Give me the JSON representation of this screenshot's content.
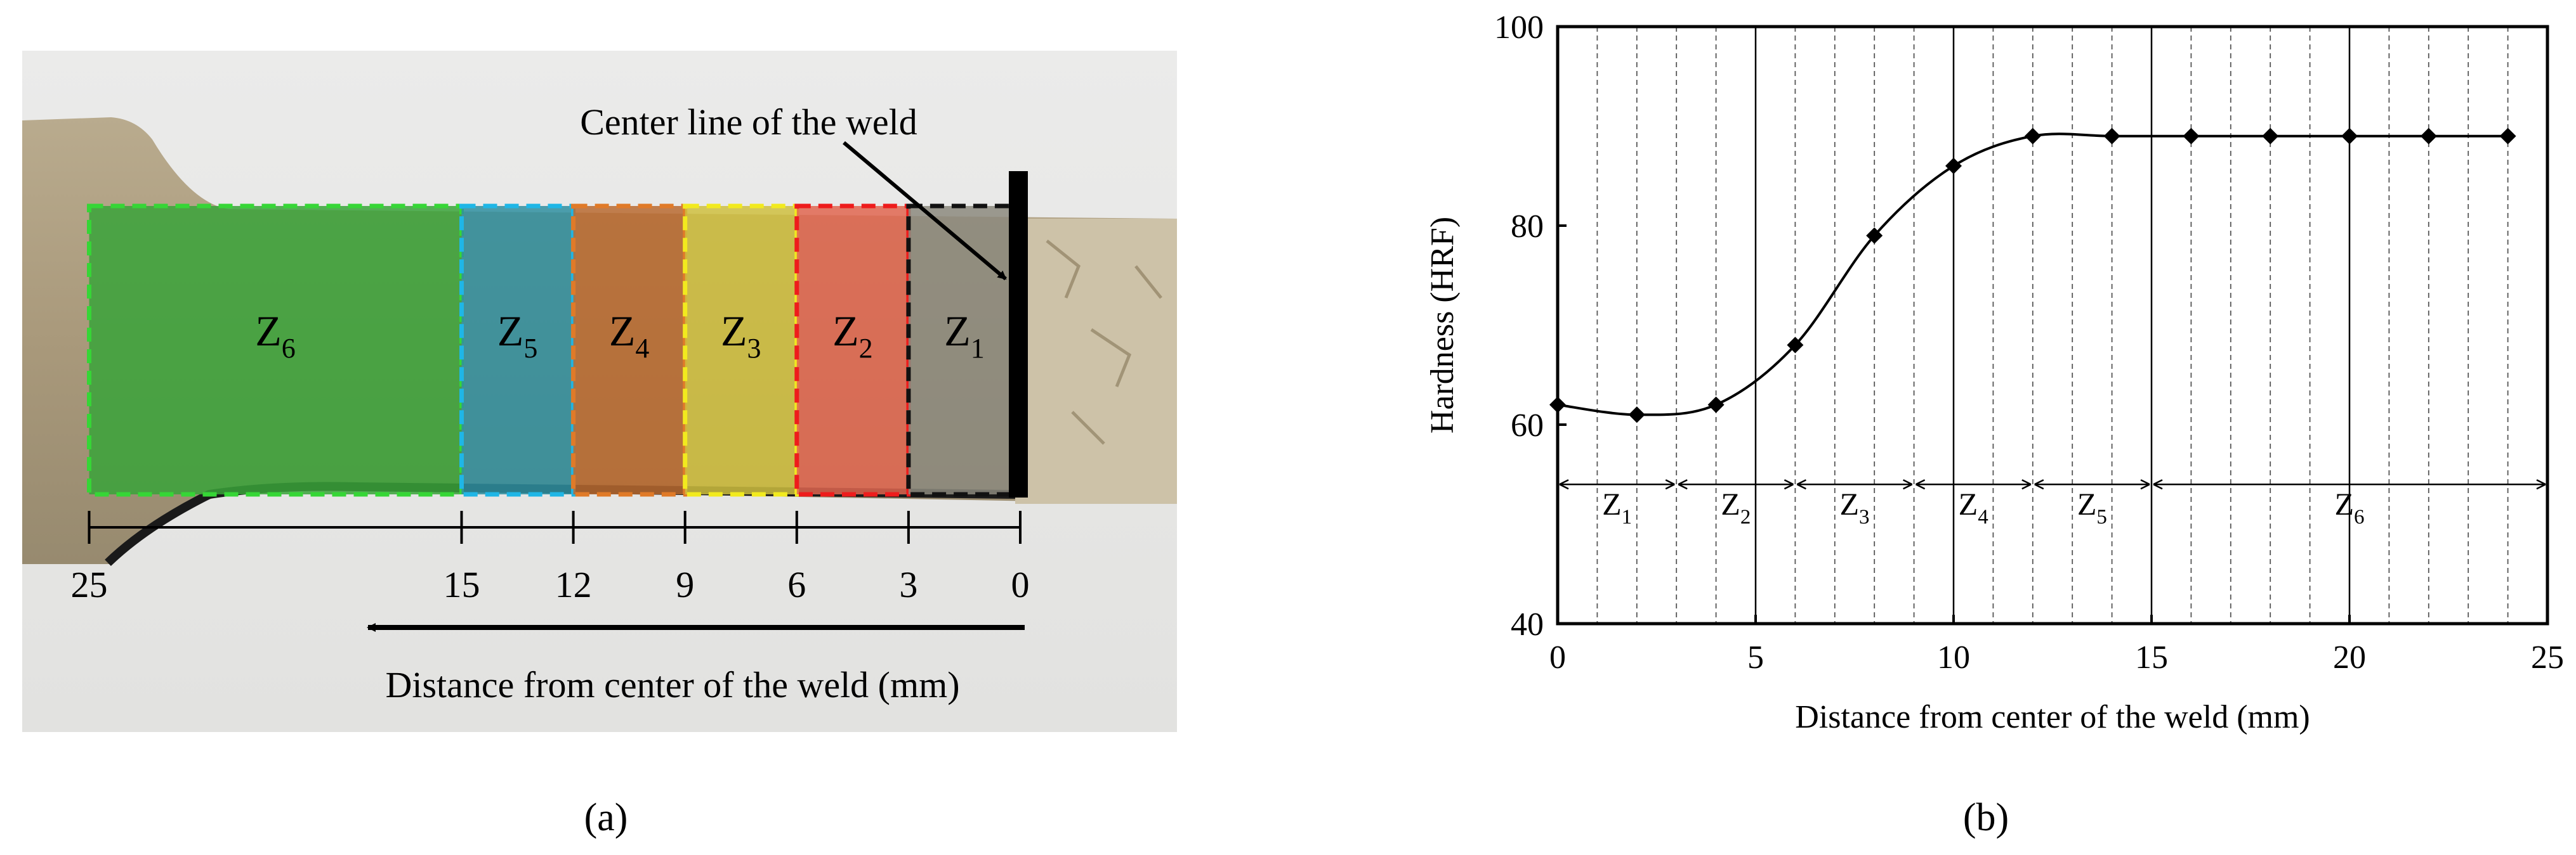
{
  "panel_a": {
    "annotation": "Center line of the weld",
    "zones": [
      {
        "label": "Z",
        "sub": "6",
        "from_mm": 25,
        "to_mm": 15,
        "color": "#3aa33a",
        "border": "#36d636"
      },
      {
        "label": "Z",
        "sub": "5",
        "from_mm": 15,
        "to_mm": 12,
        "color": "#2f8fa0",
        "border": "#1fb6e6"
      },
      {
        "label": "Z",
        "sub": "4",
        "from_mm": 12,
        "to_mm": 9,
        "color": "#b86a30",
        "border": "#e07a28"
      },
      {
        "label": "Z",
        "sub": "3",
        "from_mm": 9,
        "to_mm": 6,
        "color": "#cfc040",
        "border": "#f2ea1e"
      },
      {
        "label": "Z",
        "sub": "2",
        "from_mm": 6,
        "to_mm": 3,
        "color": "#e06650",
        "border": "#ee1c1c"
      },
      {
        "label": "Z",
        "sub": "1",
        "from_mm": 3,
        "to_mm": 0,
        "color": "#8c8a7e",
        "border": "#111111"
      }
    ],
    "scale_ticks": [
      "25",
      "15",
      "12",
      "9",
      "6",
      "3",
      "0"
    ],
    "axis_label": "Distance from center of the weld (mm)",
    "caption": "(a)"
  },
  "chart_data": {
    "type": "line",
    "xlabel": "Distance from center of the weld (mm)",
    "ylabel": "Hardness (HRF)",
    "xlim": [
      0,
      25
    ],
    "ylim": [
      40,
      100
    ],
    "x_ticks": [
      "0",
      "5",
      "10",
      "15",
      "20",
      "25"
    ],
    "y_ticks": [
      "40",
      "60",
      "80",
      "100"
    ],
    "grid": "vertical dashed every 1 mm, solid every 5 mm",
    "series": [
      {
        "marker": "diamond",
        "x": [
          0,
          2,
          4,
          6,
          8,
          10,
          12,
          14,
          16,
          18,
          20,
          22,
          24
        ],
        "y": [
          62,
          61,
          62,
          68,
          79,
          86,
          89,
          89,
          89,
          89,
          89,
          89,
          89
        ]
      }
    ],
    "zones": [
      {
        "label": "Z",
        "sub": "1",
        "from": 0,
        "to": 3
      },
      {
        "label": "Z",
        "sub": "2",
        "from": 3,
        "to": 6
      },
      {
        "label": "Z",
        "sub": "3",
        "from": 6,
        "to": 9
      },
      {
        "label": "Z",
        "sub": "4",
        "from": 9,
        "to": 12
      },
      {
        "label": "Z",
        "sub": "5",
        "from": 12,
        "to": 15
      },
      {
        "label": "Z",
        "sub": "6",
        "from": 15,
        "to": 25
      }
    ],
    "zone_arrow_y": 54
  },
  "caption_b": "(b)"
}
